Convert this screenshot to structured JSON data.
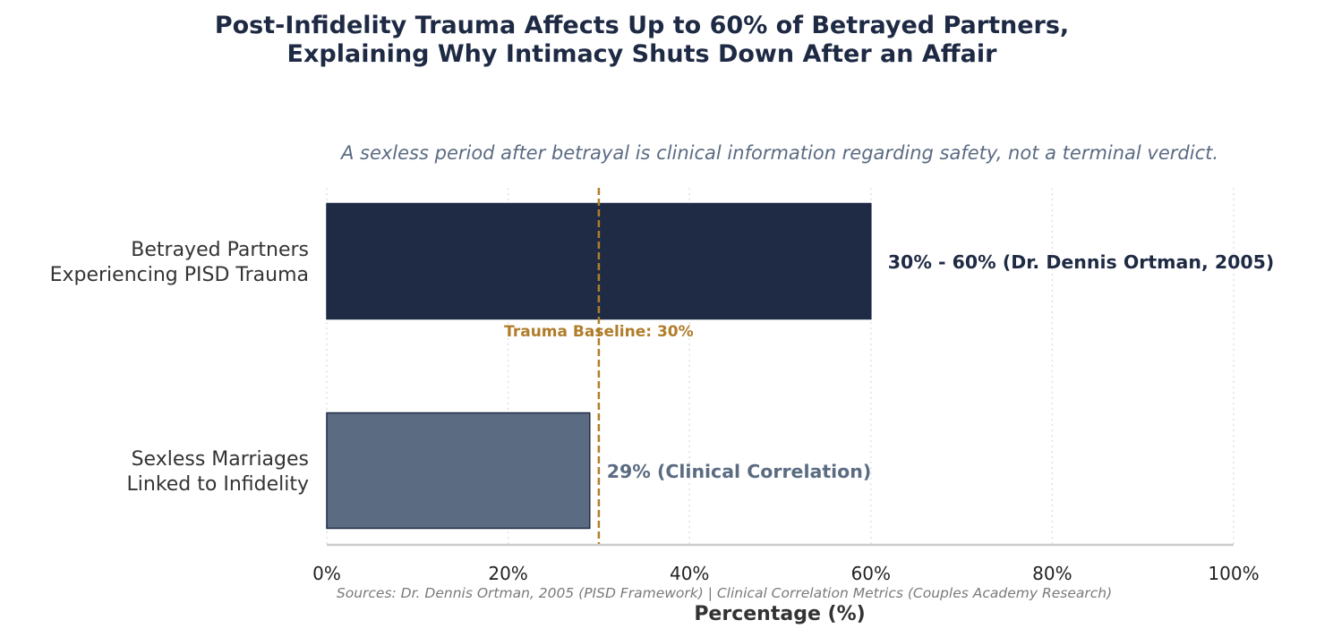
{
  "chart_data": {
    "type": "bar",
    "orientation": "horizontal",
    "title_lines": [
      "Post-Infidelity Trauma Affects Up to 60% of Betrayed Partners,",
      "Explaining Why Intimacy Shuts Down After an Affair"
    ],
    "subtitle": "A sexless period after betrayal is clinical information regarding safety, not a terminal verdict.",
    "categories": [
      {
        "lines": [
          "Betrayed Partners",
          "Experiencing PISD Trauma"
        ]
      },
      {
        "lines": [
          "Sexless Marriages",
          "Linked to Infidelity"
        ]
      }
    ],
    "values": [
      60,
      29
    ],
    "bar_colors": [
      "#1f2a44",
      "#5b6b82"
    ],
    "data_labels": [
      "30% - 60% (Dr. Dennis Ortman, 2005)",
      "29% (Clinical Correlation)"
    ],
    "data_label_colors": [
      "#1f2a44",
      "#5b6b82"
    ],
    "reference_line": {
      "value": 30,
      "label": "Trauma Baseline: 30%",
      "color": "#b07d2a"
    },
    "xlim": [
      0,
      100
    ],
    "xticks": [
      0,
      20,
      40,
      60,
      80,
      100
    ],
    "xtick_labels": [
      "0%",
      "20%",
      "40%",
      "60%",
      "80%",
      "100%"
    ],
    "xlabel": "Percentage (%)",
    "source": "Sources: Dr. Dennis Ortman, 2005 (PISD Framework) | Clinical Correlation Metrics (Couples Academy Research)",
    "grid": true
  }
}
